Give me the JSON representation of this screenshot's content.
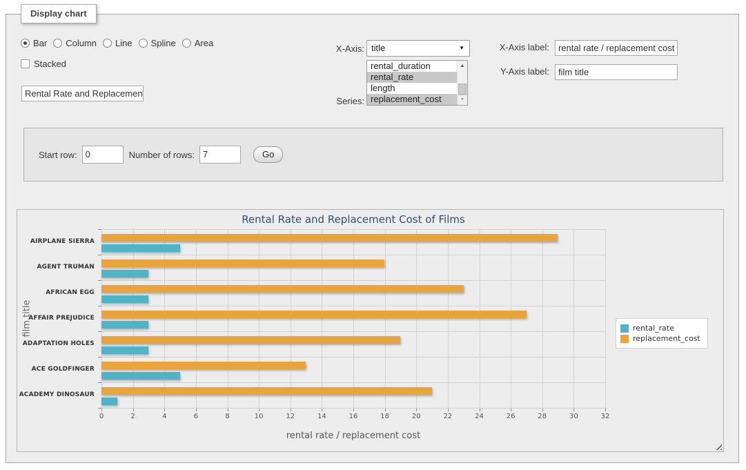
{
  "panel": {
    "legend": "Display chart"
  },
  "chart_type": {
    "options": [
      "Bar",
      "Column",
      "Line",
      "Spline",
      "Area"
    ],
    "selected": "Bar"
  },
  "stacked": {
    "label": "Stacked",
    "checked": false
  },
  "title_input": {
    "value": "Rental Rate and Replacement Cost of Films"
  },
  "x_axis": {
    "label": "X-Axis:",
    "selected": "title"
  },
  "series_select": {
    "label": "Series:",
    "options": [
      {
        "label": "rental_duration",
        "selected": false
      },
      {
        "label": "rental_rate",
        "selected": true
      },
      {
        "label": "length",
        "selected": false
      },
      {
        "label": "replacement_cost",
        "selected": true
      }
    ]
  },
  "x_axis_label": {
    "label": "X-Axis label:",
    "value": "rental rate / replacement cost"
  },
  "y_axis_label": {
    "label": "Y-Axis label:",
    "value": "film title"
  },
  "rows_form": {
    "start_row_label": "Start row:",
    "start_row_value": "0",
    "num_rows_label": "Number of rows:",
    "num_rows_value": "7",
    "go_label": "Go"
  },
  "icons": {
    "select_dropdown": "▼",
    "scrollbar_up": "▲",
    "scrollbar_down": "▼"
  },
  "colors": {
    "rental_rate": "#4FB4C5",
    "replacement_cost": "#E9A43C",
    "grid": "#d4d4d4",
    "selected_option_bg": "#c8c8c8"
  },
  "chart_data": {
    "type": "bar",
    "title": "Rental Rate and Replacement Cost of Films",
    "categories": [
      "AIRPLANE SIERRA",
      "AGENT TRUMAN",
      "AFRICAN EGG",
      "AFFAIR PREJUDICE",
      "ADAPTATION HOLES",
      "ACE GOLDFINGER",
      "ACADEMY DINOSAUR"
    ],
    "series": [
      {
        "name": "rental_rate",
        "color": "#4FB4C5",
        "values": [
          4.99,
          2.99,
          2.99,
          2.99,
          2.99,
          4.99,
          0.99
        ]
      },
      {
        "name": "replacement_cost",
        "color": "#E9A43C",
        "values": [
          28.99,
          17.99,
          22.99,
          26.99,
          18.99,
          12.99,
          20.99
        ]
      }
    ],
    "xlabel": "rental rate / replacement cost",
    "ylabel": "film title",
    "xlim": [
      0,
      32
    ],
    "x_ticks": [
      0,
      2,
      4,
      6,
      8,
      10,
      12,
      14,
      16,
      18,
      20,
      22,
      24,
      26,
      28,
      30,
      32
    ],
    "grid": true,
    "legend_position": "right",
    "bar_group_order_top_to_bottom": [
      "replacement_cost",
      "rental_rate"
    ]
  }
}
